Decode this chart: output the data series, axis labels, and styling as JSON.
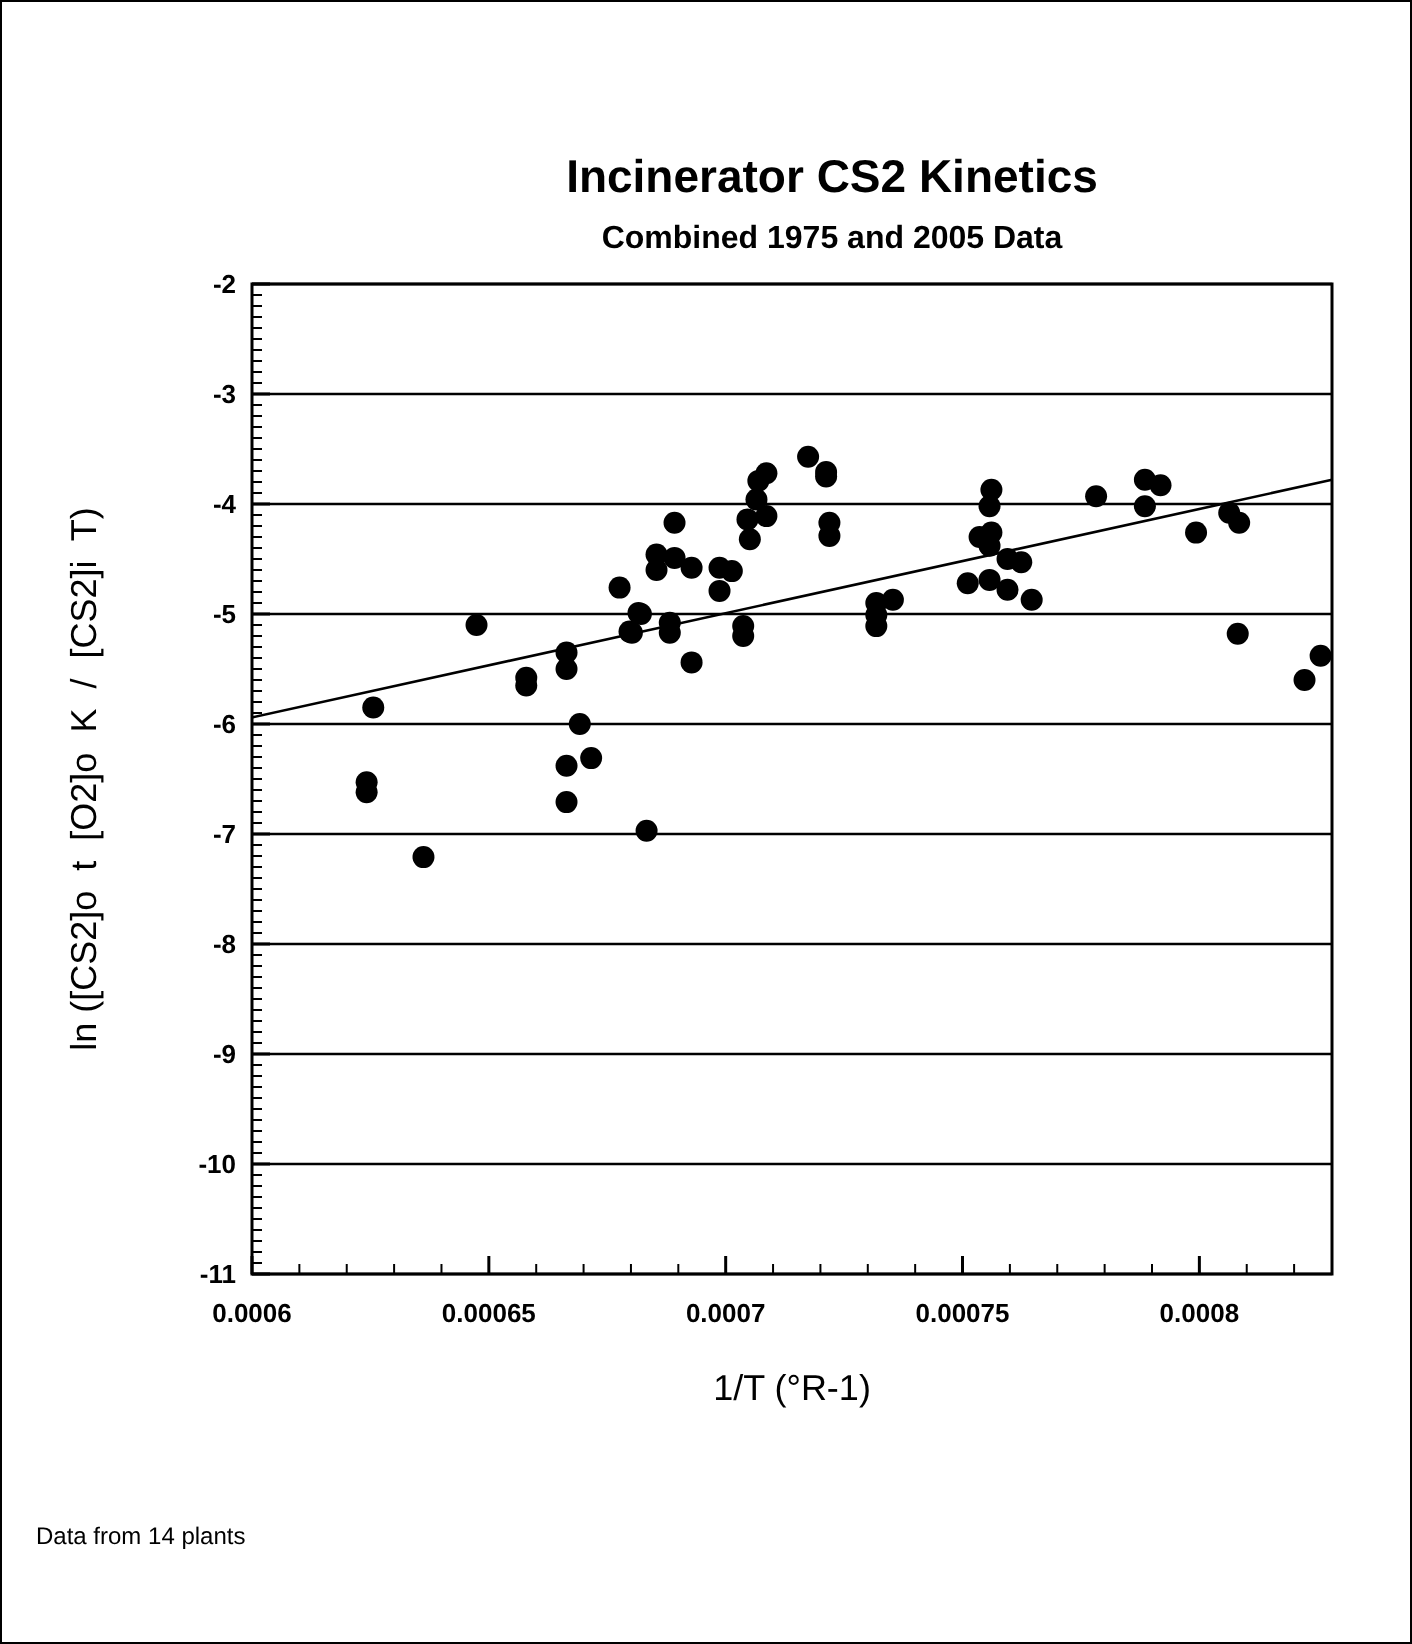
{
  "chart_data": {
    "type": "scatter",
    "title": "Incinerator CS2 Kinetics",
    "subtitle": "Combined 1975 and 2005 Data",
    "xlabel": "1/T (°R-1)",
    "ylabel": "ln ([CS2]o  t  [O2]o  K  /  [CS2]i  T)",
    "annotations": [
      "Data from 14 plants"
    ],
    "xlim": [
      0.0006,
      0.000828
    ],
    "ylim": [
      -11,
      -2
    ],
    "xticks": [
      0.0006,
      0.00065,
      0.0007,
      0.00075,
      0.0008
    ],
    "yticks": [
      -11,
      -10,
      -9,
      -8,
      -7,
      -6,
      -5,
      -4,
      -3,
      -2
    ],
    "grid": "y",
    "marker": "circle",
    "series": [
      {
        "color": "#000000",
        "x": [
          0.0006474,
          0.0006256,
          0.0006242,
          0.0006242,
          0.0006362,
          0.0006579,
          0.0006579,
          0.0006664,
          0.0006664,
          0.0006692,
          0.0006664,
          0.0006716,
          0.0006664,
          0.0006797,
          0.0006816,
          0.0006833,
          0.0006776,
          0.0006821,
          0.0006802,
          0.0006854,
          0.0006854,
          0.0006892,
          0.0006892,
          0.0006928,
          0.0006882,
          0.0006882,
          0.0006928,
          0.0006987,
          0.0007013,
          0.0006987,
          0.0007037,
          0.0007037,
          0.0007051,
          0.0007046,
          0.0007065,
          0.0007086,
          0.0007069,
          0.0007086,
          0.0007174,
          0.0007212,
          0.0007212,
          0.0007219,
          0.0007219,
          0.0007318,
          0.0007318,
          0.0007318,
          0.0007353,
          0.0007561,
          0.0007557,
          0.0007536,
          0.0007561,
          0.0007557,
          0.0007511,
          0.0007557,
          0.0007595,
          0.0007624,
          0.0007595,
          0.0007646,
          0.0007782,
          0.0007885,
          0.0007885,
          0.0007918,
          0.0007993,
          0.0008063,
          0.0008084,
          0.0008081,
          0.0008222,
          0.0008256
        ],
        "values": [
          -5.1,
          -5.85,
          -6.53,
          -6.62,
          -7.21,
          -5.58,
          -5.65,
          -5.35,
          -5.5,
          -6.0,
          -6.38,
          -6.31,
          -6.71,
          -5.16,
          -4.99,
          -6.97,
          -4.76,
          -5.0,
          -5.17,
          -4.46,
          -4.6,
          -4.17,
          -4.49,
          -4.58,
          -5.08,
          -5.17,
          -5.44,
          -4.58,
          -4.61,
          -4.79,
          -5.11,
          -5.2,
          -4.32,
          -4.14,
          -3.96,
          -4.11,
          -3.79,
          -3.72,
          -3.57,
          -3.71,
          -3.75,
          -4.17,
          -4.29,
          -4.9,
          -5.11,
          -5.01,
          -4.87,
          -3.87,
          -4.02,
          -4.3,
          -4.26,
          -4.38,
          -4.72,
          -4.69,
          -4.5,
          -4.53,
          -4.78,
          -4.87,
          -3.93,
          -3.78,
          -4.02,
          -3.83,
          -4.26,
          -4.08,
          -4.17,
          -5.18,
          -5.6,
          -5.38
        ]
      },
      {
        "type": "line",
        "color": "#000000",
        "marker": "none",
        "x": [
          0.0006,
          0.000828
        ],
        "values": [
          -5.94,
          -3.78
        ]
      }
    ]
  }
}
